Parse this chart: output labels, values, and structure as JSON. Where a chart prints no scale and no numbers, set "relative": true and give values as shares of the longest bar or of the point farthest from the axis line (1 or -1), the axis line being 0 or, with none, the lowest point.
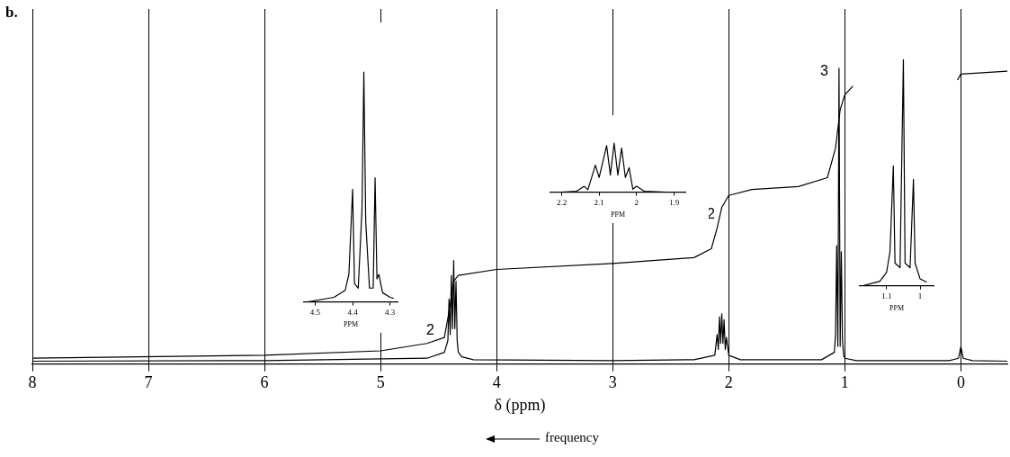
{
  "chart_data": [
    {
      "type": "line",
      "xlabel": "δ (ppm)",
      "relative": true,
      "grid": "x",
      "marker": "none",
      "line_style": "solid",
      "xlim": [
        8,
        -0.4
      ],
      "xticks": [
        8,
        7,
        6,
        5,
        4,
        3,
        2,
        1,
        0
      ],
      "annotations": [
        "b.",
        "2",
        "2",
        "3",
        "frequency"
      ],
      "series": [
        {
          "color": "#000000",
          "x": [
            8,
            6,
            4.6,
            4.45,
            4.42,
            4.41,
            4.4,
            4.39,
            4.38,
            4.37,
            4.36,
            4.35,
            4.34,
            4.33,
            4.3,
            4.2,
            3,
            2.3,
            2.12,
            2.1,
            2.09,
            2.08,
            2.07,
            2.06,
            2.05,
            2.04,
            2.03,
            2.02,
            2,
            1.9,
            1.2,
            1.09,
            1.08,
            1.07,
            1.06,
            1.05,
            1.04,
            1.03,
            1.02,
            1.01,
            1,
            0.9,
            0.1,
            0.02,
            0,
            -0.02,
            -0.1,
            -0.4
          ],
          "values": [
            0.01,
            0.012,
            0.02,
            0.04,
            0.08,
            0.22,
            0.1,
            0.3,
            0.12,
            0.35,
            0.12,
            0.28,
            0.08,
            0.04,
            0.025,
            0.015,
            0.012,
            0.015,
            0.03,
            0.1,
            0.05,
            0.16,
            0.07,
            0.17,
            0.07,
            0.15,
            0.05,
            0.09,
            0.03,
            0.015,
            0.015,
            0.04,
            0.1,
            0.4,
            0.06,
            1,
            0.06,
            0.38,
            0.08,
            0.03,
            0.02,
            0.012,
            0.012,
            0.02,
            0.06,
            0.02,
            0.012,
            0.01
          ]
        },
        {
          "color": "#000000",
          "x": [
            8,
            6,
            5,
            4.6,
            4.45,
            4.4,
            4.37,
            4.33,
            4,
            3,
            2.3,
            2.15,
            2.1,
            2.06,
            2,
            1.8,
            1.4,
            1.15,
            1.08,
            1.04,
            1,
            0.93,
            0.5,
            0.03,
            0,
            -0.4
          ],
          "values": [
            0.02,
            0.03,
            0.045,
            0.07,
            0.09,
            0.2,
            0.28,
            0.3,
            0.32,
            0.34,
            0.36,
            0.39,
            0.46,
            0.53,
            0.57,
            0.59,
            0.6,
            0.63,
            0.73,
            0.86,
            0.91,
            0.94,
            null,
            0.96,
            0.98,
            0.99
          ]
        }
      ]
    },
    {
      "type": "line",
      "xlabel": "PPM",
      "relative": true,
      "marker": "none",
      "line_style": "solid",
      "xlim": [
        4.53,
        4.28
      ],
      "xticks": [
        4.5,
        4.4,
        4.3
      ],
      "series": [
        {
          "color": "#000000",
          "x": [
            4.52,
            4.45,
            4.42,
            4.41,
            4.4,
            4.395,
            4.385,
            4.375,
            4.37,
            4.365,
            4.355,
            4.345,
            4.34,
            4.335,
            4.33,
            4.32,
            4.3,
            4.29
          ],
          "values": [
            0,
            0.02,
            0.05,
            0.12,
            0.49,
            0.08,
            0.06,
            0.4,
            1,
            0.35,
            0.06,
            0.06,
            0.54,
            0.1,
            0.12,
            0.04,
            0.02,
            0.015
          ]
        }
      ]
    },
    {
      "type": "line",
      "xlabel": "PPM",
      "relative": true,
      "marker": "none",
      "line_style": "solid",
      "xlim": [
        2.23,
        1.87
      ],
      "xticks": [
        2.2,
        2.1,
        2.0,
        1.9
      ],
      "series": [
        {
          "color": "#000000",
          "x": [
            2.2,
            2.16,
            2.14,
            2.13,
            2.11,
            2.1,
            2.08,
            2.07,
            2.06,
            2.05,
            2.04,
            2.03,
            2.02,
            2.01,
            2,
            1.98,
            1.92
          ],
          "values": [
            0,
            0.02,
            0.12,
            0.05,
            0.55,
            0.3,
            0.95,
            0.35,
            1,
            0.35,
            0.9,
            0.3,
            0.5,
            0.06,
            0.12,
            0.02,
            0
          ]
        }
      ]
    },
    {
      "type": "line",
      "xlabel": "PPM",
      "relative": true,
      "marker": "none",
      "line_style": "solid",
      "xlim": [
        1.18,
        0.96
      ],
      "xticks": [
        1.1,
        1.0
      ],
      "series": [
        {
          "color": "#000000",
          "x": [
            1.17,
            1.12,
            1.1,
            1.09,
            1.08,
            1.075,
            1.06,
            1.05,
            1.045,
            1.03,
            1.02,
            1.015,
            1,
            0.98
          ],
          "values": [
            0,
            0.02,
            0.06,
            0.15,
            0.53,
            0.1,
            0.08,
            1,
            0.1,
            0.08,
            0.47,
            0.1,
            0.03,
            0.015
          ]
        }
      ]
    }
  ]
}
